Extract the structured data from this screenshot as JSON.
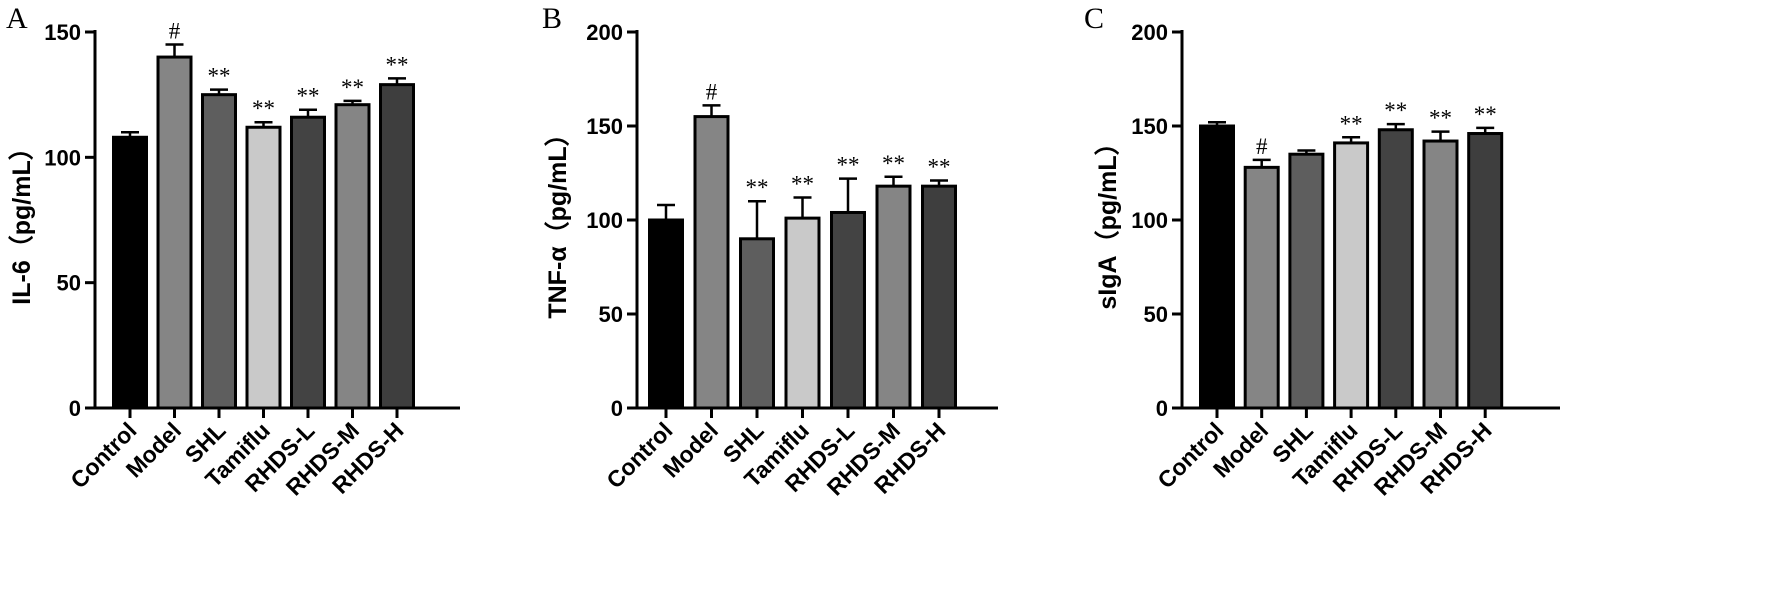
{
  "chart_data": [
    {
      "type": "bar",
      "panel": "A",
      "title": "",
      "xlabel": "",
      "ylabel": "IL-6（pg/mL）",
      "ylim": [
        0,
        150
      ],
      "yticks": [
        0,
        50,
        100,
        150
      ],
      "categories": [
        "Control",
        "Model",
        "SHL",
        "Tamiflu",
        "RHDS-L",
        "RHDS-M",
        "RHDS-H"
      ],
      "values": [
        108,
        140,
        125,
        112,
        116,
        121,
        129
      ],
      "errors": [
        2,
        5,
        2,
        2,
        3,
        1.5,
        2.5
      ],
      "annotations": [
        "",
        "#",
        "**",
        "**",
        "**",
        "**",
        "**"
      ],
      "bar_colors": [
        "#000000",
        "#858585",
        "#5e5e5e",
        "#c9c9c9",
        "#434343",
        "#858585",
        "#3e3e3e"
      ],
      "grid": false
    },
    {
      "type": "bar",
      "panel": "B",
      "title": "",
      "xlabel": "",
      "ylabel": "TNF-α（pg/mL）",
      "ylim": [
        0,
        200
      ],
      "yticks": [
        0,
        50,
        100,
        150,
        200
      ],
      "categories": [
        "Control",
        "Model",
        "SHL",
        "Tamiflu",
        "RHDS-L",
        "RHDS-M",
        "RHDS-H"
      ],
      "values": [
        100,
        155,
        90,
        101,
        104,
        118,
        118
      ],
      "errors": [
        8,
        6,
        20,
        11,
        18,
        5,
        3
      ],
      "annotations": [
        "",
        "#",
        "**",
        "**",
        "**",
        "**",
        "**"
      ],
      "bar_colors": [
        "#000000",
        "#858585",
        "#5e5e5e",
        "#c9c9c9",
        "#434343",
        "#858585",
        "#3e3e3e"
      ],
      "grid": false
    },
    {
      "type": "bar",
      "panel": "C",
      "title": "",
      "xlabel": "",
      "ylabel": "sIgA（pg/mL）",
      "ylim": [
        0,
        200
      ],
      "yticks": [
        0,
        50,
        100,
        150,
        200
      ],
      "categories": [
        "Control",
        "Model",
        "SHL",
        "Tamiflu",
        "RHDS-L",
        "RHDS-M",
        "RHDS-H"
      ],
      "values": [
        150,
        128,
        135,
        141,
        148,
        142,
        146
      ],
      "errors": [
        2,
        4,
        2,
        3,
        3,
        5,
        3
      ],
      "annotations": [
        "",
        "#",
        "",
        "**",
        "**",
        "**",
        "**"
      ],
      "bar_colors": [
        "#000000",
        "#858585",
        "#5e5e5e",
        "#c9c9c9",
        "#434343",
        "#858585",
        "#3e3e3e"
      ],
      "grid": false
    }
  ]
}
